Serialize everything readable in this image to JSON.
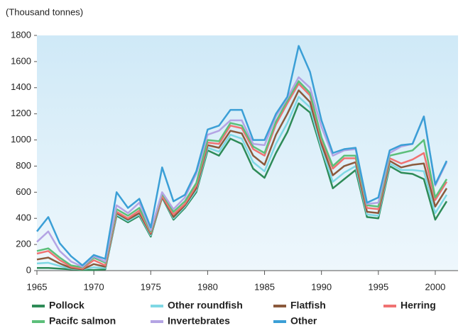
{
  "chart_data": {
    "type": "line",
    "stacked": true,
    "y_unit_label": "(Thousand tonnes)",
    "x": [
      1965,
      1966,
      1967,
      1968,
      1969,
      1970,
      1971,
      1972,
      1973,
      1974,
      1975,
      1976,
      1977,
      1978,
      1979,
      1980,
      1981,
      1982,
      1983,
      1984,
      1985,
      1986,
      1987,
      1988,
      1989,
      1990,
      1991,
      1992,
      1993,
      1994,
      1995,
      1996,
      1997,
      1998,
      1999,
      2000,
      2001
    ],
    "series": [
      {
        "name": "Pollock",
        "color": "#2e8b57",
        "values": [
          20,
          20,
          15,
          10,
          5,
          5,
          10,
          420,
          370,
          420,
          260,
          560,
          390,
          480,
          600,
          920,
          880,
          1010,
          970,
          780,
          710,
          900,
          1060,
          1280,
          1210,
          920,
          630,
          700,
          770,
          410,
          400,
          800,
          750,
          740,
          700,
          390,
          530
        ]
      },
      {
        "name": "Other roundfish",
        "color": "#7fd8e4",
        "values": [
          35,
          40,
          20,
          5,
          5,
          20,
          10,
          10,
          10,
          10,
          10,
          5,
          10,
          10,
          15,
          20,
          30,
          30,
          40,
          50,
          50,
          70,
          70,
          50,
          40,
          20,
          50,
          50,
          30,
          20,
          20,
          20,
          20,
          30,
          60,
          50,
          50
        ]
      },
      {
        "name": "Flatfish",
        "color": "#8b5a3c",
        "values": [
          30,
          40,
          20,
          5,
          0,
          25,
          10,
          10,
          10,
          10,
          10,
          0,
          10,
          10,
          15,
          20,
          30,
          30,
          40,
          50,
          50,
          70,
          70,
          50,
          40,
          30,
          50,
          50,
          30,
          20,
          20,
          20,
          20,
          40,
          60,
          50,
          50
        ]
      },
      {
        "name": "Herring",
        "color": "#f07272",
        "values": [
          45,
          50,
          25,
          10,
          5,
          30,
          10,
          10,
          10,
          20,
          10,
          5,
          20,
          10,
          20,
          20,
          30,
          40,
          40,
          50,
          70,
          80,
          80,
          50,
          50,
          30,
          50,
          60,
          30,
          30,
          30,
          20,
          30,
          40,
          80,
          50,
          50
        ]
      },
      {
        "name": "Pacifc salmon",
        "color": "#5cbf7a",
        "values": [
          20,
          20,
          20,
          10,
          10,
          20,
          20,
          20,
          20,
          20,
          10,
          20,
          20,
          20,
          20,
          20,
          20,
          20,
          20,
          20,
          20,
          20,
          20,
          20,
          20,
          20,
          20,
          20,
          20,
          20,
          20,
          20,
          80,
          70,
          100,
          20,
          20
        ]
      },
      {
        "name": "Invertebrates",
        "color": "#b4a4e4",
        "values": [
          70,
          130,
          50,
          30,
          5,
          10,
          10,
          30,
          20,
          40,
          10,
          10,
          20,
          30,
          70,
          40,
          80,
          20,
          40,
          20,
          60,
          40,
          20,
          30,
          40,
          80,
          80,
          40,
          50,
          10,
          30,
          20,
          50,
          50,
          180,
          90,
          130
        ]
      },
      {
        "name": "Other",
        "color": "#3b9fd6",
        "values": [
          80,
          110,
          60,
          40,
          10,
          10,
          20,
          100,
          40,
          30,
          20,
          190,
          60,
          20,
          20,
          40,
          40,
          80,
          80,
          30,
          40,
          20,
          10,
          240,
          120,
          50,
          20,
          10,
          10,
          10,
          40,
          20,
          10,
          0,
          0,
          10,
          10
        ]
      }
    ],
    "xlim": [
      1965,
      2002
    ],
    "xticks": [
      1965,
      1970,
      1975,
      1980,
      1985,
      1990,
      1995,
      2000
    ],
    "ylim": [
      0,
      1800
    ],
    "yticks": [
      0,
      200,
      400,
      600,
      800,
      1000,
      1200,
      1400,
      1600,
      1800
    ],
    "legend": "bottom"
  }
}
